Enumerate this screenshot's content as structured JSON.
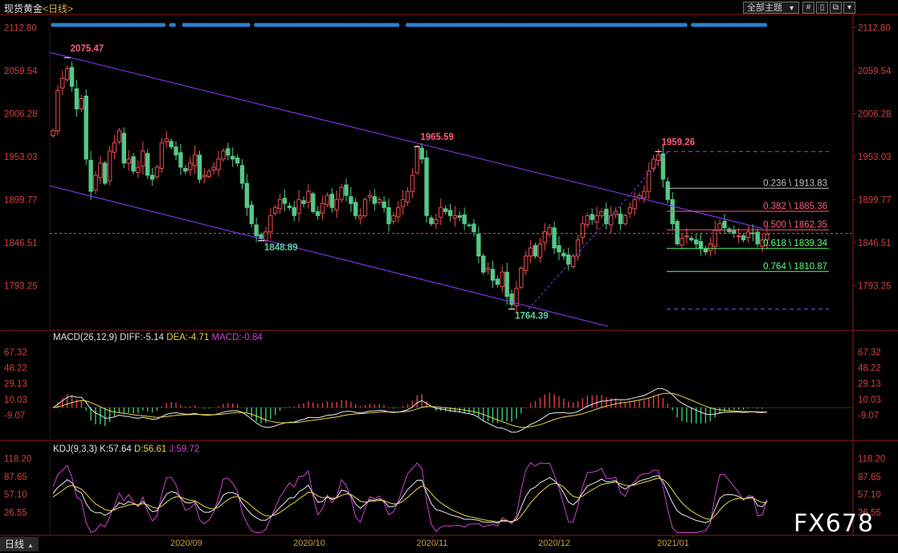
{
  "header": {
    "instrument": "现货黄金",
    "period": "<日线>",
    "theme_button": "全部主题",
    "theme_arrow": "▼",
    "tools": [
      "#",
      "▯",
      "⧉",
      "▾"
    ]
  },
  "watermark": "FX678",
  "bottom_tab": "日线",
  "bottom_tab_arrow": "▲",
  "chart_data": [
    {
      "type": "candlestick",
      "title": "现货黄金<日线>",
      "ylim": [
        1740,
        2125
      ],
      "y_ticks": [
        "2112.80",
        "2059.54",
        "2006.28",
        "1953.03",
        "1899.77",
        "1846.51",
        "1793.25"
      ],
      "x_labels": [
        "2020/09",
        "2020/10",
        "2020/11",
        "2020/12",
        "2021/01"
      ],
      "current_price_line": 1858.0,
      "annotations": [
        {
          "text": "2075.47",
          "value": 2075.47,
          "type": "high"
        },
        {
          "text": "1848.89",
          "value": 1848.89,
          "type": "low"
        },
        {
          "text": "1965.59",
          "value": 1965.59,
          "type": "high"
        },
        {
          "text": "1764.39",
          "value": 1764.39,
          "type": "low"
        },
        {
          "text": "1959.26",
          "value": 1959.26,
          "type": "high"
        }
      ],
      "fibonacci": [
        {
          "text": "0.236 \\ 1913.83",
          "value": 1913.83,
          "color": "#c0c0c0"
        },
        {
          "text": "0.382 \\ 1885.36",
          "value": 1885.36,
          "color": "#ff5c7a"
        },
        {
          "text": "0.500 \\ 1862.35",
          "value": 1862.35,
          "color": "#ff5c7a"
        },
        {
          "text": "0.618 \\ 1839.34",
          "value": 1839.34,
          "color": "#5cff7a"
        },
        {
          "text": "0.764 \\ 1810.87",
          "value": 1810.87,
          "color": "#5cff7a"
        }
      ],
      "fib_extremes": [
        1959.26,
        1764.39
      ],
      "closes": [
        1985,
        2035,
        2050,
        2062,
        2040,
        2012,
        2025,
        1950,
        1910,
        1930,
        1945,
        1920,
        1960,
        1970,
        1985,
        1945,
        1950,
        1935,
        1940,
        1960,
        1930,
        1925,
        1940,
        1970,
        1975,
        1965,
        1955,
        1940,
        1935,
        1945,
        1955,
        1925,
        1930,
        1935,
        1940,
        1950,
        1960,
        1955,
        1950,
        1945,
        1920,
        1890,
        1870,
        1855,
        1852,
        1860,
        1880,
        1890,
        1900,
        1895,
        1890,
        1880,
        1900,
        1895,
        1910,
        1885,
        1880,
        1895,
        1905,
        1890,
        1900,
        1915,
        1905,
        1895,
        1880,
        1880,
        1900,
        1905,
        1895,
        1900,
        1890,
        1870,
        1880,
        1890,
        1900,
        1910,
        1930,
        1965,
        1950,
        1880,
        1870,
        1875,
        1890,
        1885,
        1880,
        1880,
        1878,
        1870,
        1868,
        1860,
        1830,
        1810,
        1815,
        1800,
        1795,
        1810,
        1780,
        1770,
        1790,
        1815,
        1830,
        1840,
        1830,
        1845,
        1860,
        1865,
        1840,
        1835,
        1830,
        1820,
        1830,
        1850,
        1870,
        1880,
        1875,
        1880,
        1885,
        1870,
        1880,
        1885,
        1870,
        1880,
        1890,
        1900,
        1905,
        1910,
        1935,
        1950,
        1955,
        1925,
        1900,
        1870,
        1845,
        1852,
        1855,
        1850,
        1845,
        1840,
        1835,
        1845,
        1862,
        1870,
        1865,
        1860,
        1858,
        1855,
        1850,
        1860,
        1858,
        1845,
        1850,
        1857
      ],
      "macd": {
        "label": "MACD(26,12,9)",
        "diff_label": "DIFF:-5.14",
        "dea_label": "DEA:-4.71",
        "macd_label": "MACD:-0.84",
        "y_ticks": [
          "67.32",
          "48.22",
          "29.13",
          "10.03",
          "-9.07"
        ],
        "ylim": [
          -35,
          77
        ]
      },
      "kdj": {
        "label": "KDJ(9,3,3)",
        "k_label": "K:57.64",
        "d_label": "D:56.61",
        "j_label": "J:59.72",
        "y_ticks": [
          "118.20",
          "87.65",
          "57.10",
          "26.55"
        ],
        "ylim": [
          -10,
          126
        ]
      }
    }
  ]
}
